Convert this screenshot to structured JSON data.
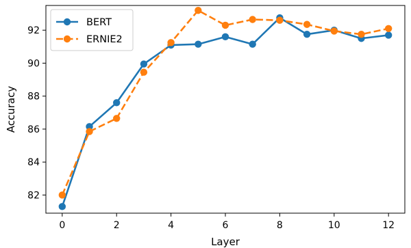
{
  "chart_data": {
    "type": "line",
    "xlabel": "Layer",
    "ylabel": "Accuracy",
    "x": [
      0,
      1,
      2,
      3,
      4,
      5,
      6,
      7,
      8,
      9,
      10,
      11,
      12
    ],
    "xlim": [
      -0.6,
      12.6
    ],
    "ylim": [
      80.9,
      93.5
    ],
    "xticks": [
      0,
      2,
      4,
      6,
      8,
      10,
      12
    ],
    "yticks": [
      82,
      84,
      86,
      88,
      90,
      92
    ],
    "grid": false,
    "legend_position": "top-left",
    "series": [
      {
        "name": "BERT",
        "color": "#1f77b4",
        "line_style": "solid",
        "marker": "circle",
        "values": [
          81.3,
          86.15,
          87.6,
          89.95,
          91.1,
          91.15,
          91.6,
          91.15,
          92.75,
          91.75,
          92.0,
          91.5,
          91.7
        ]
      },
      {
        "name": "ERNIE2",
        "color": "#ff7f0e",
        "line_style": "dashed",
        "marker": "circle",
        "values": [
          82.0,
          85.85,
          86.65,
          89.45,
          91.25,
          93.2,
          92.3,
          92.65,
          92.6,
          92.35,
          91.95,
          91.75,
          92.1
        ]
      }
    ]
  }
}
